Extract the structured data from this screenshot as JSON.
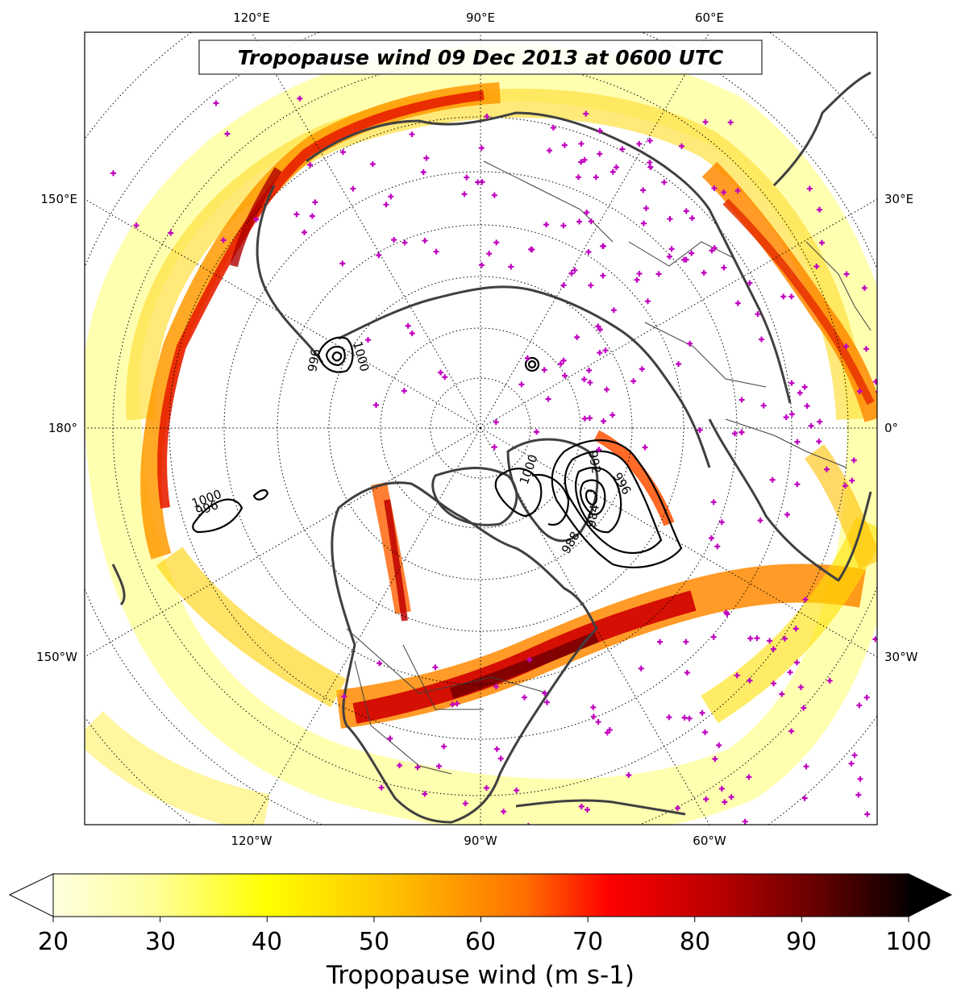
{
  "title": "Tropopause wind 09 Dec 2013 at 0600 UTC",
  "lon_labels_top": [
    "120°E",
    "90°E",
    "60°E"
  ],
  "lon_labels_left": [
    "150°E",
    "180°",
    "150°W"
  ],
  "lon_labels_right": [
    "30°E",
    "0°",
    "30°W"
  ],
  "lon_labels_bottom": [
    "120°W",
    "90°W",
    "60°W"
  ],
  "contour_labels": [
    "1000",
    "996",
    "1000",
    "996",
    "992",
    "988",
    "984",
    "1000",
    "996"
  ],
  "colorbar": {
    "label": "Tropopause wind (m s-1)",
    "ticks": [
      "20",
      "30",
      "40",
      "50",
      "60",
      "70",
      "80",
      "90",
      "100"
    ],
    "min": 20,
    "max": 100,
    "colormap": "hot_r",
    "extend": "both"
  },
  "colors": {
    "coast": "#404040",
    "station": "#c000c0",
    "contour": "#000000"
  }
}
